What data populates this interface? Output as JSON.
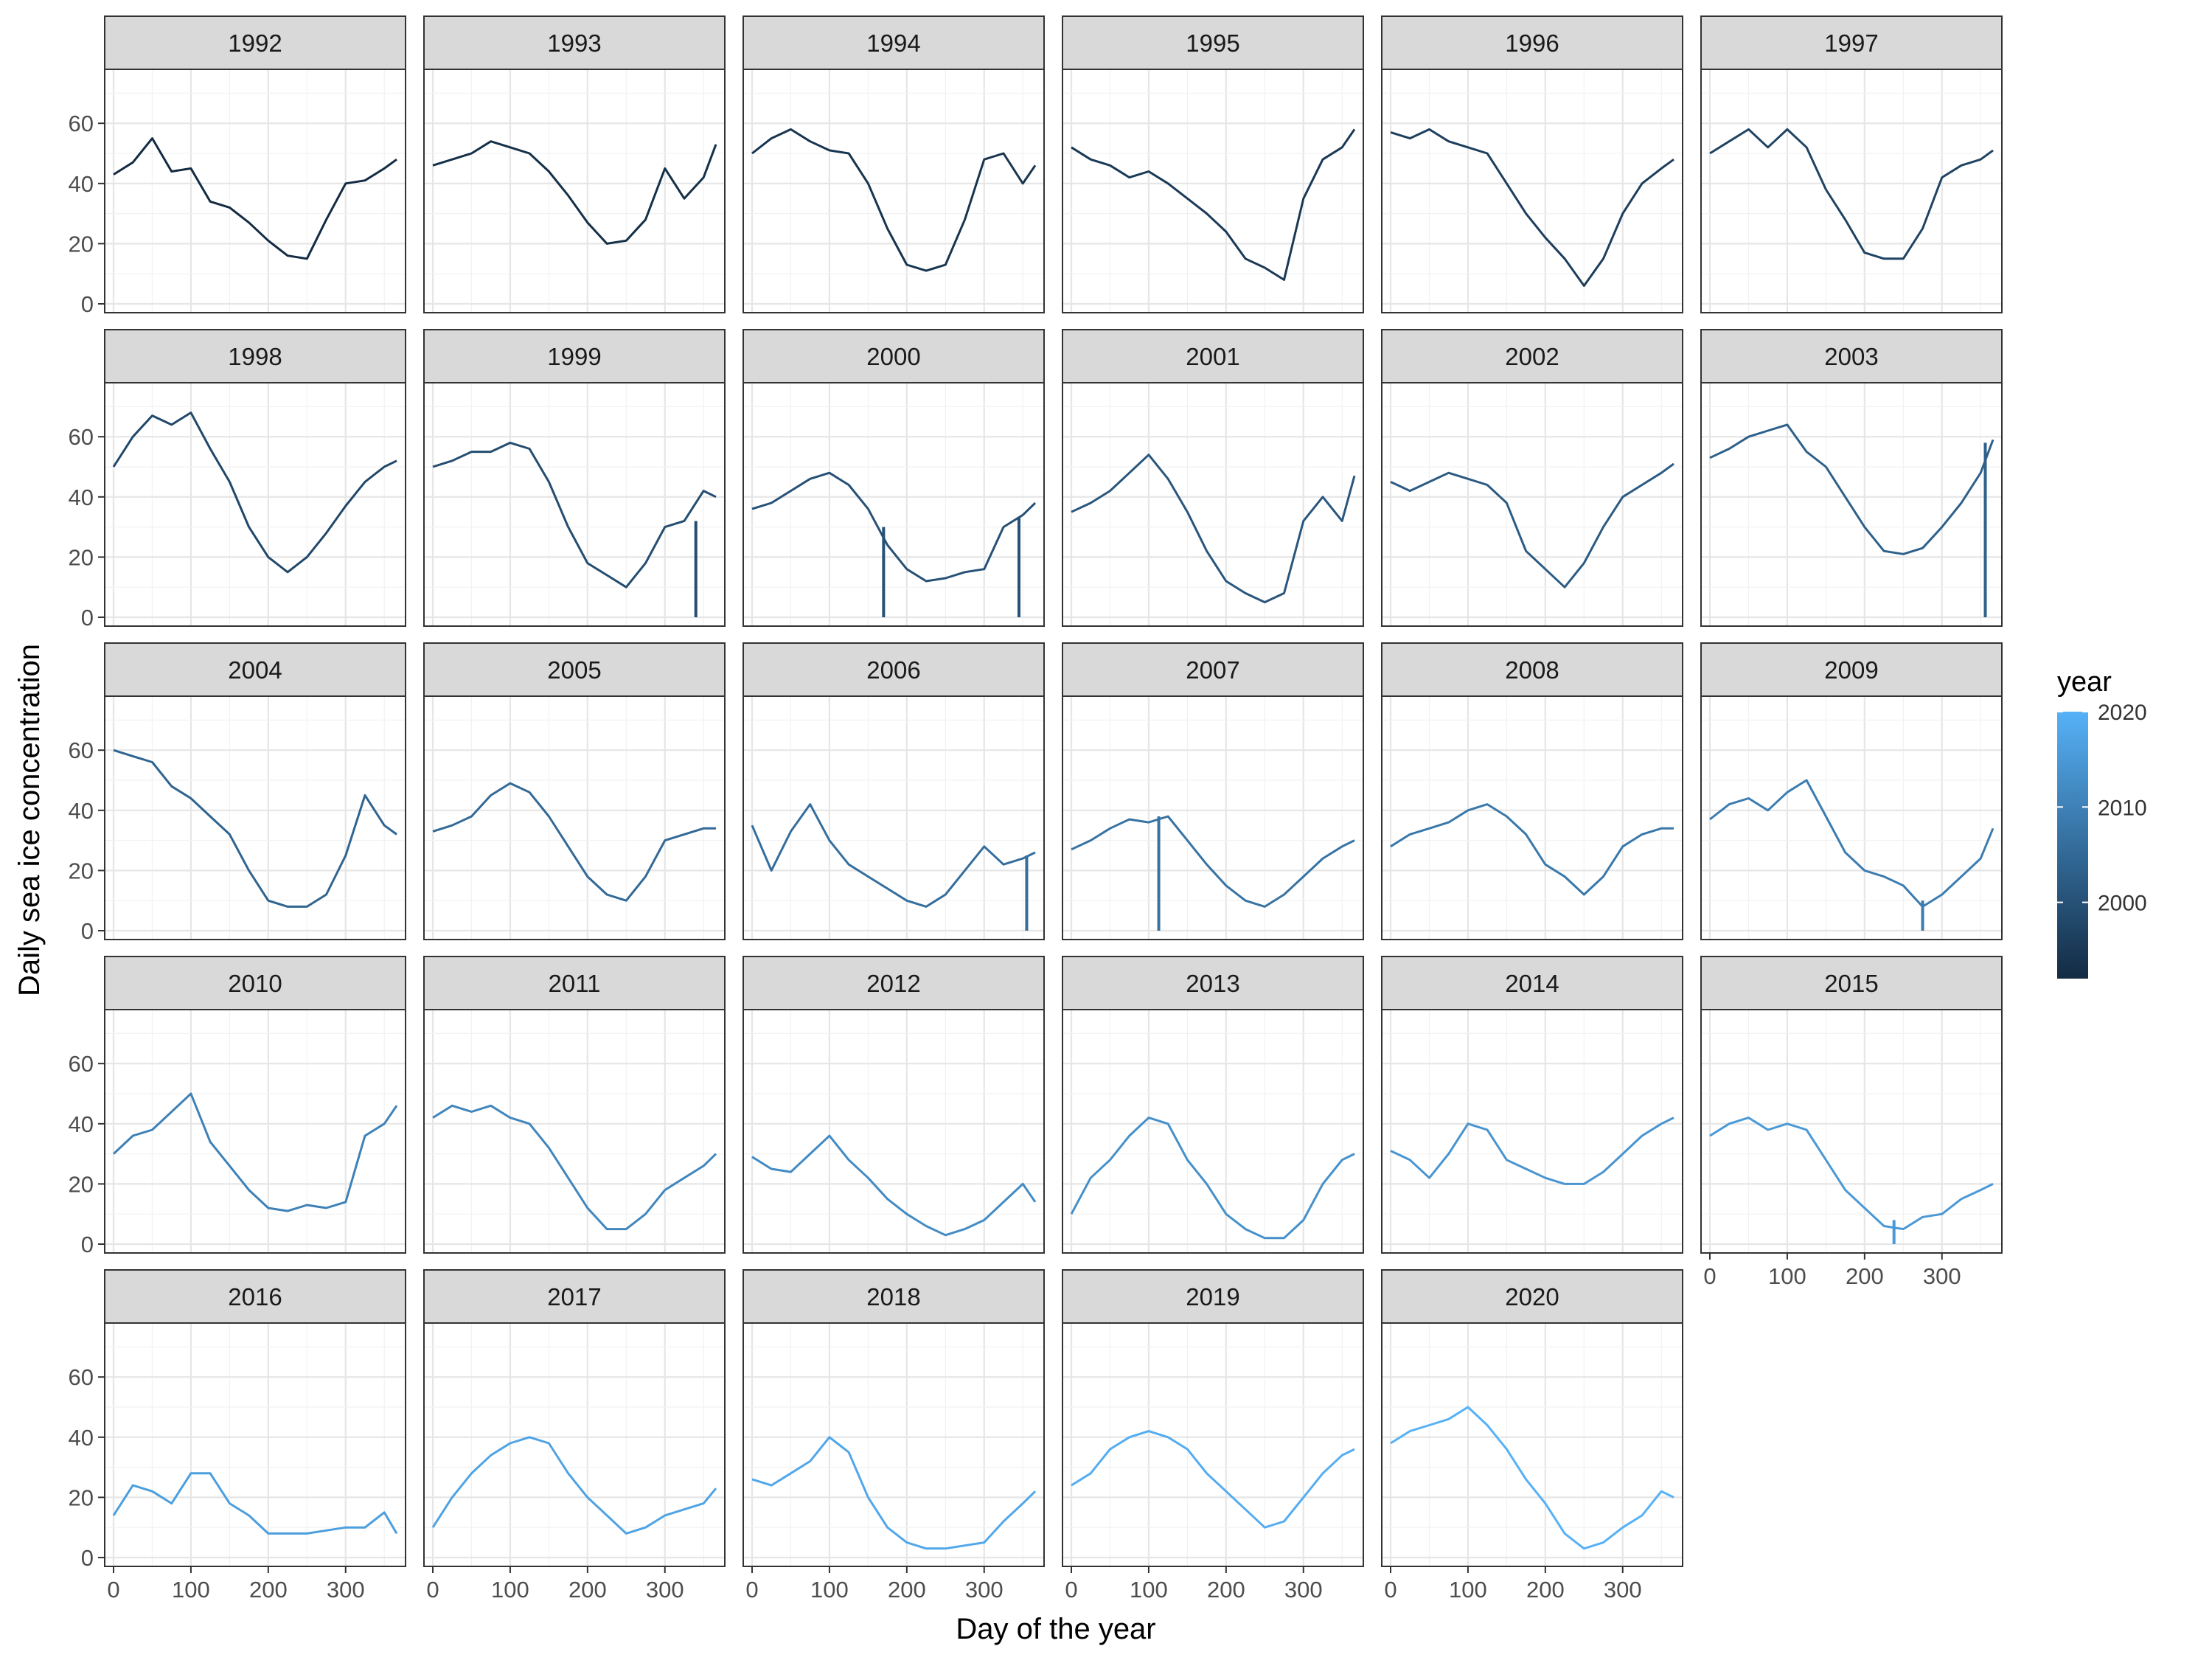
{
  "chart_data": {
    "type": "line",
    "facet_by": "year",
    "xlabel": "Day of the year",
    "ylabel": "Daily sea ice concentration",
    "xlim": [
      0,
      366
    ],
    "ylim": [
      0,
      75
    ],
    "x_ticks": [
      0,
      100,
      200,
      300
    ],
    "y_ticks": [
      0,
      20,
      40,
      60
    ],
    "grid": true,
    "legend": {
      "title": "year",
      "position": "right",
      "type": "colorbar",
      "range": [
        1992,
        2020
      ],
      "ticks": [
        2000,
        2010,
        2020
      ],
      "low_color": "#132b43",
      "high_color": "#56b1f7"
    },
    "x": [
      0,
      25,
      50,
      75,
      100,
      125,
      150,
      175,
      200,
      225,
      250,
      275,
      300,
      325,
      350,
      366
    ],
    "series": [
      {
        "name": "1992",
        "values": [
          43,
          47,
          55,
          44,
          45,
          34,
          32,
          27,
          21,
          16,
          15,
          28,
          40,
          41,
          45,
          48
        ]
      },
      {
        "name": "1993",
        "values": [
          46,
          48,
          50,
          54,
          52,
          50,
          44,
          36,
          27,
          20,
          21,
          28,
          45,
          35,
          42,
          53
        ]
      },
      {
        "name": "1994",
        "values": [
          50,
          55,
          58,
          54,
          51,
          50,
          40,
          25,
          13,
          11,
          13,
          28,
          48,
          50,
          40,
          46
        ]
      },
      {
        "name": "1995",
        "values": [
          52,
          48,
          46,
          42,
          44,
          40,
          35,
          30,
          24,
          15,
          12,
          8,
          35,
          48,
          52,
          58
        ]
      },
      {
        "name": "1996",
        "values": [
          57,
          55,
          58,
          54,
          52,
          50,
          40,
          30,
          22,
          15,
          6,
          15,
          30,
          40,
          45,
          48
        ]
      },
      {
        "name": "1997",
        "values": [
          50,
          54,
          58,
          52,
          58,
          52,
          38,
          28,
          17,
          15,
          15,
          25,
          42,
          46,
          48,
          51
        ]
      },
      {
        "name": "1998",
        "values": [
          50,
          60,
          67,
          64,
          68,
          56,
          45,
          30,
          20,
          15,
          20,
          28,
          37,
          45,
          50,
          52
        ]
      },
      {
        "name": "1999",
        "values": [
          50,
          52,
          55,
          55,
          58,
          56,
          45,
          30,
          18,
          14,
          10,
          18,
          30,
          32,
          42,
          40
        ]
      },
      {
        "name": "2000",
        "values": [
          36,
          38,
          42,
          46,
          48,
          44,
          36,
          24,
          16,
          12,
          13,
          15,
          16,
          30,
          34,
          38
        ]
      },
      {
        "name": "2001",
        "values": [
          35,
          38,
          42,
          48,
          54,
          46,
          35,
          22,
          12,
          8,
          5,
          8,
          32,
          40,
          32,
          47
        ]
      },
      {
        "name": "2002",
        "values": [
          45,
          42,
          45,
          48,
          46,
          44,
          38,
          22,
          16,
          10,
          18,
          30,
          40,
          44,
          48,
          51
        ]
      },
      {
        "name": "2003",
        "values": [
          53,
          56,
          60,
          62,
          64,
          55,
          50,
          40,
          30,
          22,
          21,
          23,
          30,
          38,
          48,
          59
        ]
      },
      {
        "name": "2004",
        "values": [
          60,
          58,
          56,
          48,
          44,
          38,
          32,
          20,
          10,
          8,
          8,
          12,
          25,
          45,
          35,
          32
        ]
      },
      {
        "name": "2005",
        "values": [
          33,
          35,
          38,
          45,
          49,
          46,
          38,
          28,
          18,
          12,
          10,
          18,
          30,
          32,
          34,
          34
        ]
      },
      {
        "name": "2006",
        "values": [
          35,
          20,
          33,
          42,
          30,
          22,
          18,
          14,
          10,
          8,
          12,
          20,
          28,
          22,
          24,
          26
        ]
      },
      {
        "name": "2007",
        "values": [
          27,
          30,
          34,
          37,
          36,
          38,
          30,
          22,
          15,
          10,
          8,
          12,
          18,
          24,
          28,
          30
        ]
      },
      {
        "name": "2008",
        "values": [
          28,
          32,
          34,
          36,
          40,
          42,
          38,
          32,
          22,
          18,
          12,
          18,
          28,
          32,
          34,
          34
        ]
      },
      {
        "name": "2009",
        "values": [
          37,
          42,
          44,
          40,
          46,
          50,
          38,
          26,
          20,
          18,
          15,
          8,
          12,
          18,
          24,
          34
        ]
      },
      {
        "name": "2010",
        "values": [
          30,
          36,
          38,
          44,
          50,
          34,
          26,
          18,
          12,
          11,
          13,
          12,
          14,
          36,
          40,
          46
        ]
      },
      {
        "name": "2011",
        "values": [
          42,
          46,
          44,
          46,
          42,
          40,
          32,
          22,
          12,
          5,
          5,
          10,
          18,
          22,
          26,
          30
        ]
      },
      {
        "name": "2012",
        "values": [
          29,
          25,
          24,
          30,
          36,
          28,
          22,
          15,
          10,
          6,
          3,
          5,
          8,
          14,
          20,
          14
        ]
      },
      {
        "name": "2013",
        "values": [
          10,
          22,
          28,
          36,
          42,
          40,
          28,
          20,
          10,
          5,
          2,
          2,
          8,
          20,
          28,
          30
        ]
      },
      {
        "name": "2014",
        "values": [
          31,
          28,
          22,
          30,
          40,
          38,
          28,
          25,
          22,
          20,
          20,
          24,
          30,
          36,
          40,
          42
        ]
      },
      {
        "name": "2015",
        "values": [
          36,
          40,
          42,
          38,
          40,
          38,
          28,
          18,
          12,
          6,
          5,
          9,
          10,
          15,
          18,
          20
        ]
      },
      {
        "name": "2016",
        "values": [
          14,
          24,
          22,
          18,
          28,
          28,
          18,
          14,
          8,
          8,
          8,
          9,
          10,
          10,
          15,
          8
        ]
      },
      {
        "name": "2017",
        "values": [
          10,
          20,
          28,
          34,
          38,
          40,
          38,
          28,
          20,
          14,
          8,
          10,
          14,
          16,
          18,
          23
        ]
      },
      {
        "name": "2018",
        "values": [
          26,
          24,
          28,
          32,
          40,
          35,
          20,
          10,
          5,
          3,
          3,
          4,
          5,
          12,
          18,
          22
        ]
      },
      {
        "name": "2019",
        "values": [
          24,
          28,
          36,
          40,
          42,
          40,
          36,
          28,
          22,
          16,
          10,
          12,
          20,
          28,
          34,
          36
        ]
      },
      {
        "name": "2020",
        "values": [
          38,
          42,
          44,
          46,
          50,
          44,
          36,
          26,
          18,
          8,
          3,
          5,
          10,
          14,
          22,
          20
        ]
      }
    ],
    "spikes": [
      {
        "series": "1999",
        "x": 340,
        "from": 32,
        "to": 0
      },
      {
        "series": "2000",
        "x": 170,
        "from": 30,
        "to": 0
      },
      {
        "series": "2000",
        "x": 345,
        "from": 33,
        "to": 0
      },
      {
        "series": "2003",
        "x": 356,
        "from": 58,
        "to": 0
      },
      {
        "series": "2006",
        "x": 355,
        "from": 25,
        "to": 0
      },
      {
        "series": "2007",
        "x": 113,
        "from": 38,
        "to": 0
      },
      {
        "series": "2009",
        "x": 275,
        "from": 10,
        "to": 0
      },
      {
        "series": "2015",
        "x": 238,
        "from": 8,
        "to": 0
      }
    ]
  }
}
